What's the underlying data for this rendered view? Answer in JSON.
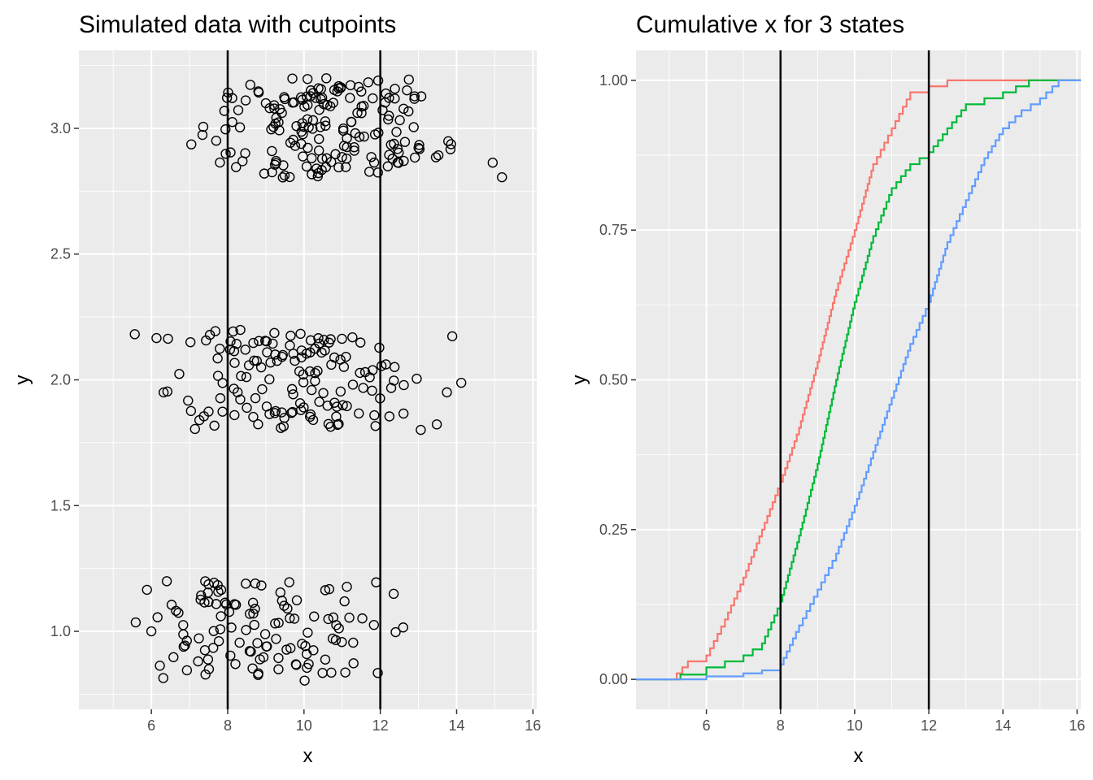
{
  "chart_data": [
    {
      "type": "scatter",
      "title": "Simulated data with cutpoints",
      "xlabel": "x",
      "ylabel": "y",
      "xlim": [
        4.1,
        16.1
      ],
      "ylim": [
        0.69,
        3.31
      ],
      "xticks": [
        6,
        8,
        10,
        12,
        14,
        16
      ],
      "xtick_labels": [
        "6",
        "8",
        "10",
        "12",
        "14",
        "16"
      ],
      "yticks": [
        1.0,
        1.5,
        2.0,
        2.5,
        3.0
      ],
      "ytick_labels": [
        "1.0",
        "1.5",
        "2.0",
        "2.5",
        "3.0"
      ],
      "grid": true,
      "cutpoints": [
        8,
        12
      ],
      "point_groups": [
        {
          "y_level": 1,
          "jitter": 0.2,
          "count": 120,
          "x_mean": 8.7,
          "x_sd": 1.55,
          "x_range": [
            5.2,
            12.6
          ]
        },
        {
          "y_level": 2,
          "jitter": 0.2,
          "count": 150,
          "x_mean": 10.0,
          "x_sd": 1.7,
          "x_range": [
            4.7,
            14.7
          ]
        },
        {
          "y_level": 3,
          "jitter": 0.2,
          "count": 180,
          "x_mean": 10.6,
          "x_sd": 1.7,
          "x_range": [
            6.5,
            15.6
          ]
        }
      ]
    },
    {
      "type": "line",
      "title": "Cumulative x for 3 states",
      "xlabel": "x",
      "ylabel": "y",
      "xlim": [
        4.1,
        16.1
      ],
      "ylim": [
        -0.05,
        1.05
      ],
      "xticks": [
        6,
        8,
        10,
        12,
        14,
        16
      ],
      "xtick_labels": [
        "6",
        "8",
        "10",
        "12",
        "14",
        "16"
      ],
      "yticks": [
        0.0,
        0.25,
        0.5,
        0.75,
        1.0
      ],
      "ytick_labels": [
        "0.00",
        "0.25",
        "0.50",
        "0.75",
        "1.00"
      ],
      "grid": true,
      "cutpoints": [
        8,
        12
      ],
      "series": [
        {
          "color": "#F8766D",
          "x": [
            4.1,
            5.2,
            5.5,
            6.0,
            6.5,
            7.0,
            7.5,
            8.0,
            8.5,
            9.0,
            9.5,
            10.0,
            10.5,
            11.0,
            11.5,
            12.0,
            12.5,
            16.1
          ],
          "y": [
            0.0,
            0.01,
            0.03,
            0.04,
            0.1,
            0.17,
            0.25,
            0.33,
            0.42,
            0.53,
            0.65,
            0.75,
            0.86,
            0.92,
            0.98,
            0.99,
            1.0,
            1.0
          ]
        },
        {
          "color": "#00BA38",
          "x": [
            4.1,
            5.3,
            6.0,
            6.5,
            7.0,
            7.5,
            8.0,
            8.5,
            9.0,
            9.5,
            10.0,
            10.5,
            11.0,
            11.5,
            12.0,
            12.5,
            13.0,
            14.0,
            14.7,
            16.1
          ],
          "y": [
            0.0,
            0.008,
            0.02,
            0.03,
            0.04,
            0.06,
            0.13,
            0.24,
            0.36,
            0.5,
            0.63,
            0.74,
            0.82,
            0.86,
            0.88,
            0.92,
            0.96,
            0.98,
            1.0,
            1.0
          ]
        },
        {
          "color": "#619CFF",
          "x": [
            4.1,
            6.0,
            7.0,
            7.5,
            8.0,
            8.5,
            9.0,
            9.5,
            10.0,
            10.5,
            11.0,
            11.5,
            12.0,
            12.5,
            13.0,
            13.5,
            14.0,
            14.5,
            15.0,
            15.5,
            16.1
          ],
          "y": [
            0.0,
            0.005,
            0.01,
            0.015,
            0.025,
            0.09,
            0.15,
            0.21,
            0.29,
            0.38,
            0.47,
            0.56,
            0.63,
            0.73,
            0.8,
            0.87,
            0.92,
            0.95,
            0.97,
            1.0,
            1.0
          ]
        }
      ]
    }
  ]
}
